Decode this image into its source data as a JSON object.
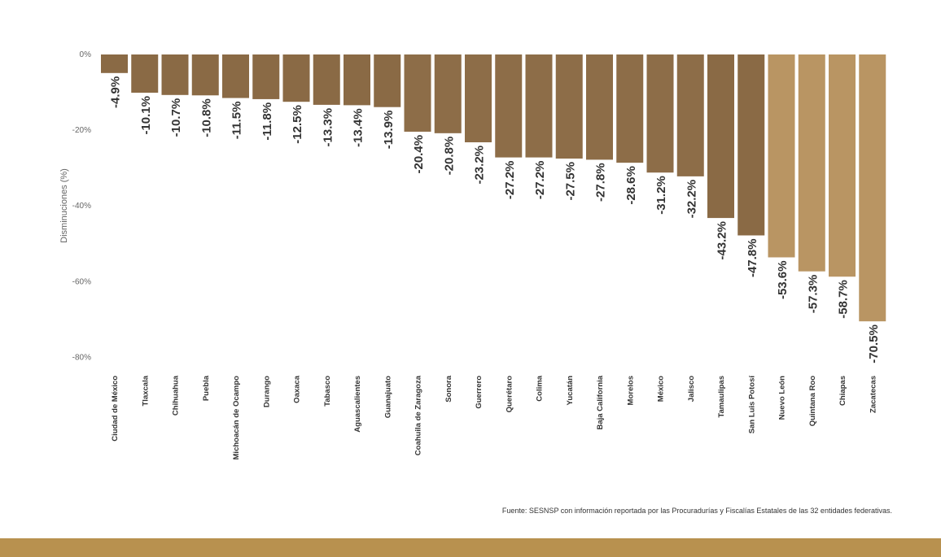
{
  "chart_data": {
    "type": "bar",
    "orientation": "vertical-negative",
    "ylabel": "Disminuciones (%)",
    "ylim": [
      -80,
      0
    ],
    "yticks": [
      0,
      -20,
      -40,
      -60,
      -80
    ],
    "ytick_labels": [
      "0%",
      "-20%",
      "-40%",
      "-60%",
      "-80%"
    ],
    "grid": false,
    "legend": "none",
    "categories": [
      "Ciudad de México",
      "Tlaxcala",
      "Chihuahua",
      "Puebla",
      "Michoacán de Ocampo",
      "Durango",
      "Oaxaca",
      "Tabasco",
      "Aguascalientes",
      "Guanajuato",
      "Coahuila de Zaragoza",
      "Sonora",
      "Guerrero",
      "Querétaro",
      "Colima",
      "Yucatán",
      "Baja California",
      "Morelos",
      "México",
      "Jalisco",
      "Tamaulipas",
      "San Luis Potosí",
      "Nuevo León",
      "Quintana Roo",
      "Chiapas",
      "Zacatecas"
    ],
    "values": [
      -4.9,
      -10.1,
      -10.7,
      -10.8,
      -11.5,
      -11.8,
      -12.5,
      -13.3,
      -13.4,
      -13.9,
      -20.4,
      -20.8,
      -23.2,
      -27.2,
      -27.2,
      -27.5,
      -27.8,
      -28.6,
      -31.2,
      -32.2,
      -43.2,
      -47.8,
      -53.6,
      -57.3,
      -58.7,
      -70.5
    ],
    "value_labels": [
      "-4.9%",
      "-10.1%",
      "-10.7%",
      "-10.8%",
      "-11.5%",
      "-11.8%",
      "-12.5%",
      "-13.3%",
      "-13.4%",
      "-13.9%",
      "-20.4%",
      "-20.8%",
      "-23.2%",
      "-27.2%",
      "-27.2%",
      "-27.5%",
      "-27.8%",
      "-28.6%",
      "-31.2%",
      "-32.2%",
      "-43.2%",
      "-47.8%",
      "-53.6%",
      "-57.3%",
      "-58.7%",
      "-70.5%"
    ],
    "bar_colors": [
      "#8a6a45",
      "#8a6a45",
      "#8a6a45",
      "#8a6a45",
      "#8a6a45",
      "#8a6a45",
      "#8a6a45",
      "#8a6a45",
      "#8a6a45",
      "#8a6a45",
      "#8d6d48",
      "#8d6d48",
      "#8d6d48",
      "#8d6d48",
      "#8d6d48",
      "#8d6d48",
      "#8d6d48",
      "#8d6d48",
      "#8d6d48",
      "#8d6d48",
      "#8a6a45",
      "#8a6a45",
      "#b99563",
      "#b99563",
      "#b99563",
      "#b99563"
    ]
  },
  "footer": {
    "source": "Fuente: SESNSP con información reportada por las Procuradurías y Fiscalías Estatales de las 32 entidades federativas.",
    "band_color": "#b8914f"
  }
}
